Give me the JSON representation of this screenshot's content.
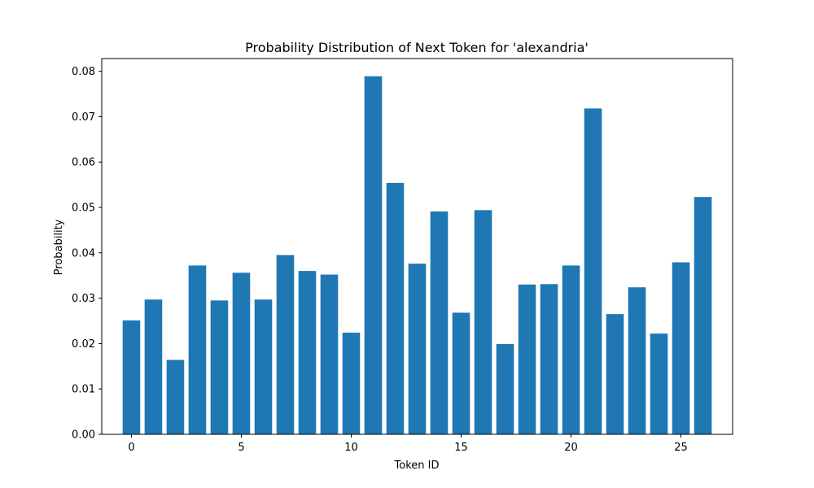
{
  "chart_data": {
    "type": "bar",
    "title": "Probability Distribution of Next Token for 'alexandria'",
    "xlabel": "Token ID",
    "ylabel": "Probability",
    "bar_color": "#1f77b4",
    "xlim": [
      -1.35,
      27.35
    ],
    "ylim": [
      0,
      0.0828
    ],
    "x_ticks": [
      0,
      5,
      10,
      15,
      20,
      25
    ],
    "x_tick_labels": [
      "0",
      "5",
      "10",
      "15",
      "20",
      "25"
    ],
    "y_ticks": [
      0,
      0.01,
      0.02,
      0.03,
      0.04,
      0.05,
      0.06,
      0.07,
      0.08
    ],
    "y_tick_labels": [
      "0.00",
      "0.01",
      "0.02",
      "0.03",
      "0.04",
      "0.05",
      "0.06",
      "0.07",
      "0.08"
    ],
    "grid": false,
    "legend": "none",
    "categories": [
      0,
      1,
      2,
      3,
      4,
      5,
      6,
      7,
      8,
      9,
      10,
      11,
      12,
      13,
      14,
      15,
      16,
      17,
      18,
      19,
      20,
      21,
      22,
      23,
      24,
      25,
      26
    ],
    "values": [
      0.0251,
      0.0297,
      0.0164,
      0.0372,
      0.0295,
      0.0356,
      0.0297,
      0.0395,
      0.036,
      0.0352,
      0.0224,
      0.0789,
      0.0554,
      0.0376,
      0.0491,
      0.0268,
      0.0494,
      0.0199,
      0.033,
      0.0331,
      0.0372,
      0.0718,
      0.0265,
      0.0324,
      0.0222,
      0.0379,
      0.0523
    ]
  }
}
